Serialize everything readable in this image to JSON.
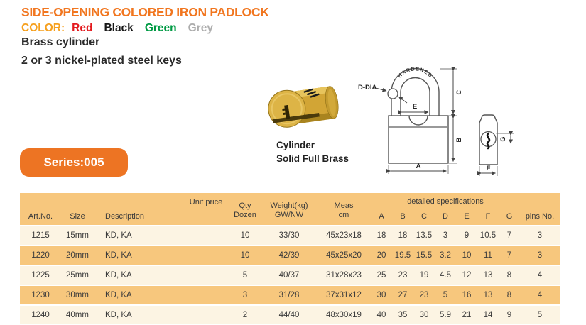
{
  "page": {
    "title": "SIDE-OPENING COLORED IRON PADLOCK",
    "color_label": "COLOR:",
    "color_options": [
      {
        "label": "Red",
        "hex": "#e3191d"
      },
      {
        "label": "Black",
        "hex": "#171717"
      },
      {
        "label": "Green",
        "hex": "#009a44"
      },
      {
        "label": "Grey",
        "hex": "#adadad"
      }
    ],
    "feature_line1": "Brass cylinder",
    "feature_line2": "2 or 3 nickel-plated steel keys",
    "series_badge": "Series:005"
  },
  "cylinder_figure": {
    "caption_line1": "Cylinder",
    "caption_line2": "Solid Full Brass"
  },
  "diagram": {
    "shackle_text": "HARDENED",
    "d_dia": "D-DIA",
    "dim_a": "A",
    "dim_b": "B",
    "dim_c": "C",
    "dim_e": "E",
    "dim_f": "F",
    "dim_g": "G"
  },
  "table": {
    "headers": {
      "art_no": "Art.No.",
      "size": "Size",
      "description": "Description",
      "unit_price": "Unit price",
      "qty": "Qty",
      "qty_sub": "Dozen",
      "weight": "Weight(kg)",
      "weight_sub": "GW/NW",
      "meas": "Meas",
      "meas_sub": "cm",
      "detailed_specs": "detailed specifications",
      "pins": "pins No."
    },
    "spec_columns": [
      "A",
      "B",
      "C",
      "D",
      "E",
      "F",
      "G"
    ],
    "rows": [
      {
        "art_no": "1215",
        "size": "15mm",
        "description": "KD, KA",
        "unit_price": "",
        "qty": "10",
        "weight": "33/30",
        "meas": "45x23x18",
        "A": "18",
        "B": "18",
        "C": "13.5",
        "D": "3",
        "E": "9",
        "F": "10.5",
        "G": "7",
        "pins": "3"
      },
      {
        "art_no": "1220",
        "size": "20mm",
        "description": "KD, KA",
        "unit_price": "",
        "qty": "10",
        "weight": "42/39",
        "meas": "45x25x20",
        "A": "20",
        "B": "19.5",
        "C": "15.5",
        "D": "3.2",
        "E": "10",
        "F": "11",
        "G": "7",
        "pins": "3"
      },
      {
        "art_no": "1225",
        "size": "25mm",
        "description": "KD, KA",
        "unit_price": "",
        "qty": "5",
        "weight": "40/37",
        "meas": "31x28x23",
        "A": "25",
        "B": "23",
        "C": "19",
        "D": "4.5",
        "E": "12",
        "F": "13",
        "G": "8",
        "pins": "4"
      },
      {
        "art_no": "1230",
        "size": "30mm",
        "description": "KD, KA",
        "unit_price": "",
        "qty": "3",
        "weight": "31/28",
        "meas": "37x31x12",
        "A": "30",
        "B": "27",
        "C": "23",
        "D": "5",
        "E": "16",
        "F": "13",
        "G": "8",
        "pins": "4"
      },
      {
        "art_no": "1240",
        "size": "40mm",
        "description": "KD, KA",
        "unit_price": "",
        "qty": "2",
        "weight": "44/40",
        "meas": "48x30x19",
        "A": "40",
        "B": "35",
        "C": "30",
        "D": "5.9",
        "E": "21",
        "F": "14",
        "G": "9",
        "pins": "5"
      }
    ]
  },
  "theme": {
    "title_orange": "#f1761f",
    "color_word_orange": "#f6a01e",
    "badge_orange": "#ed7423",
    "table_band_orange": "#f7c77d",
    "table_row_cream": "#fcf4e3",
    "brass_gold": "#d2a535"
  }
}
